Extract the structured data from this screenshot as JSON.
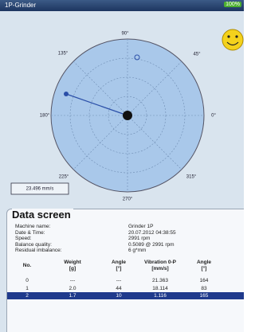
{
  "header": {
    "title": "1P-Grinder",
    "battery": "100%"
  },
  "plot": {
    "angle_labels": [
      "90°",
      "45°",
      "0°",
      "315°",
      "270°",
      "225°",
      "180°",
      "135°"
    ],
    "readout": "23.496 mm/s"
  },
  "data_screen": {
    "title": "Data screen",
    "fields": [
      {
        "label": "Machine name:",
        "value": "Grinder 1P"
      },
      {
        "label": "Date & Time:",
        "value": "20.07.2012 04:38:55"
      },
      {
        "label": "Speed:",
        "value": "2991 rpm"
      },
      {
        "label": "Balance quality:",
        "value": "0.5089 @ 2991 rpm"
      },
      {
        "label": "Residual imbalance:",
        "value": "6 g*mm"
      }
    ],
    "table": {
      "columns": [
        {
          "name": "No."
        },
        {
          "name": "Weight",
          "unit": "[g]"
        },
        {
          "name": "Angle",
          "unit": "[°]"
        },
        {
          "name": "Vibration 0-P",
          "unit": "[mm/s]"
        },
        {
          "name": "Angle",
          "unit": "[°]"
        }
      ],
      "rows": [
        [
          "0",
          "---",
          "---",
          "21.363",
          "164"
        ],
        [
          "1",
          "2.0",
          "44",
          "18.114",
          "83"
        ],
        [
          "2",
          "1.7",
          "10",
          "1.116",
          "165"
        ]
      ]
    }
  }
}
